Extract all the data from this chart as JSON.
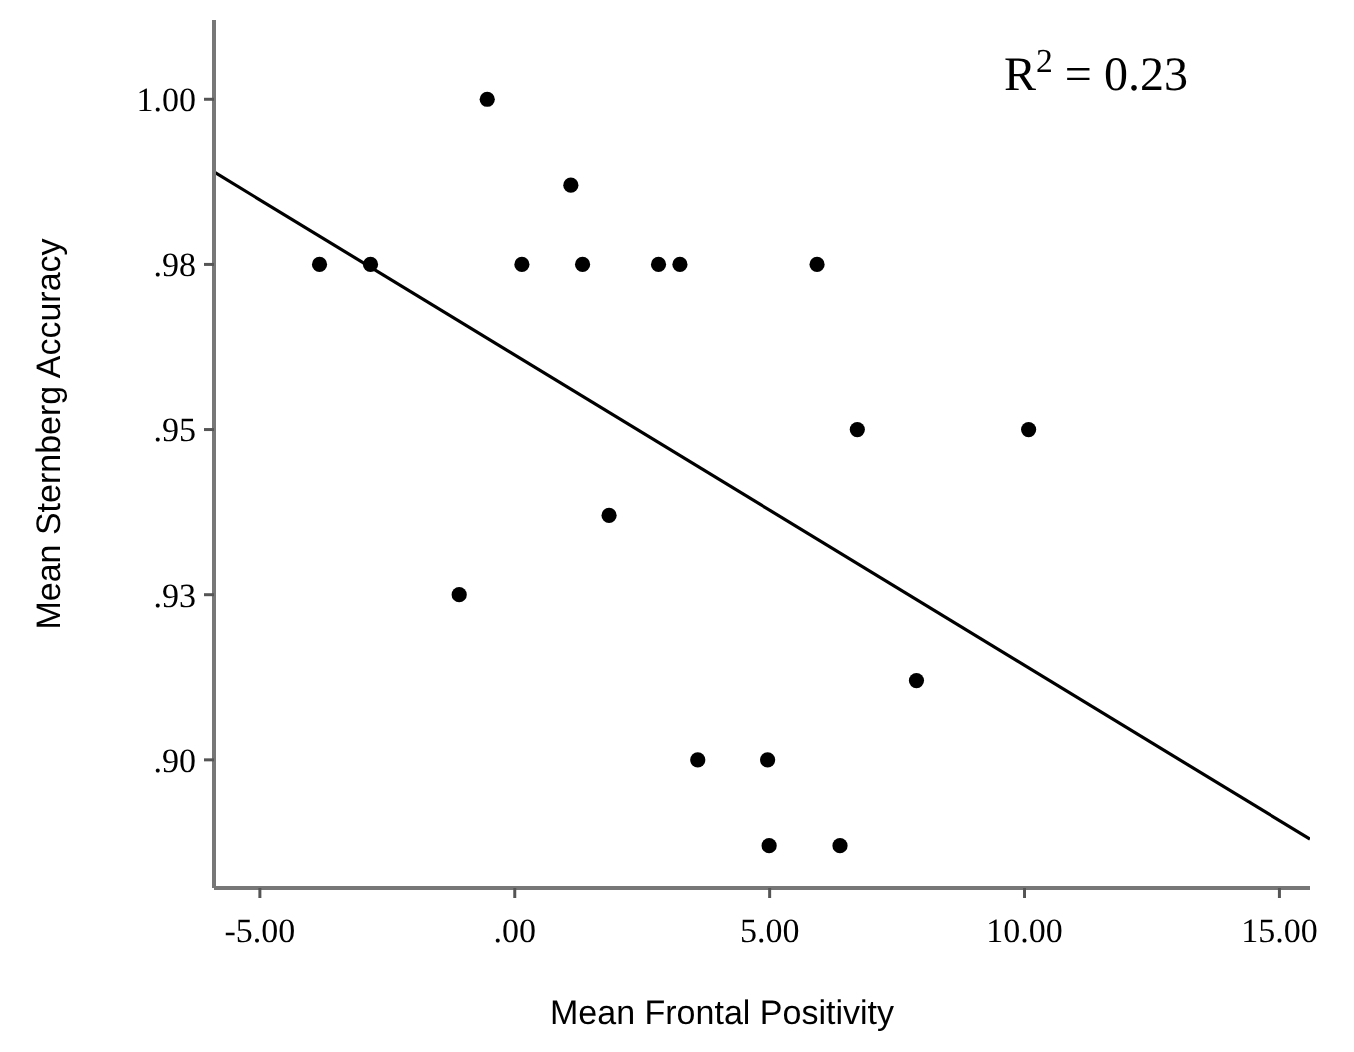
{
  "chart_data": {
    "type": "scatter",
    "xlabel": "Mean Frontal Positivity",
    "ylabel": "Mean Sternberg Accuracy",
    "annotations": [
      "R$^{2}$ = 0.23"
    ],
    "xlim": [
      -5.9,
      15.6
    ],
    "ylim": [
      0.8806,
      1.012
    ],
    "xticks": [
      {
        "value": -5,
        "label": "-5.00"
      },
      {
        "value": 0,
        "label": ".00"
      },
      {
        "value": 5,
        "label": "5.00"
      },
      {
        "value": 10,
        "label": "10.00"
      },
      {
        "value": 15,
        "label": "15.00"
      }
    ],
    "yticks": [
      {
        "value": 0.9,
        "label": ".90"
      },
      {
        "value": 0.925,
        "label": ".93"
      },
      {
        "value": 0.95,
        "label": ".95"
      },
      {
        "value": 0.975,
        "label": ".98"
      },
      {
        "value": 1.0,
        "label": "1.00"
      }
    ],
    "grid": false,
    "marker": "circle",
    "series": [
      {
        "color": "#000000",
        "x": [
          -3.83,
          -2.83,
          -0.54,
          1.1,
          0.14,
          1.33,
          2.82,
          3.24,
          1.85,
          6.72,
          10.08,
          7.88,
          3.59,
          4.96,
          4.99,
          6.38,
          -1.09,
          5.93
        ],
        "values": [
          0.975,
          0.975,
          1.0,
          0.987,
          0.975,
          0.975,
          0.975,
          0.975,
          0.937,
          0.95,
          0.95,
          0.912,
          0.9,
          0.9,
          0.887,
          0.887,
          0.925,
          0.975
        ]
      },
      {
        "type": "line",
        "color": "#000000",
        "marker": "none",
        "x": [
          -5.9,
          15.6
        ],
        "values": [
          0.989,
          0.888
        ]
      }
    ]
  }
}
